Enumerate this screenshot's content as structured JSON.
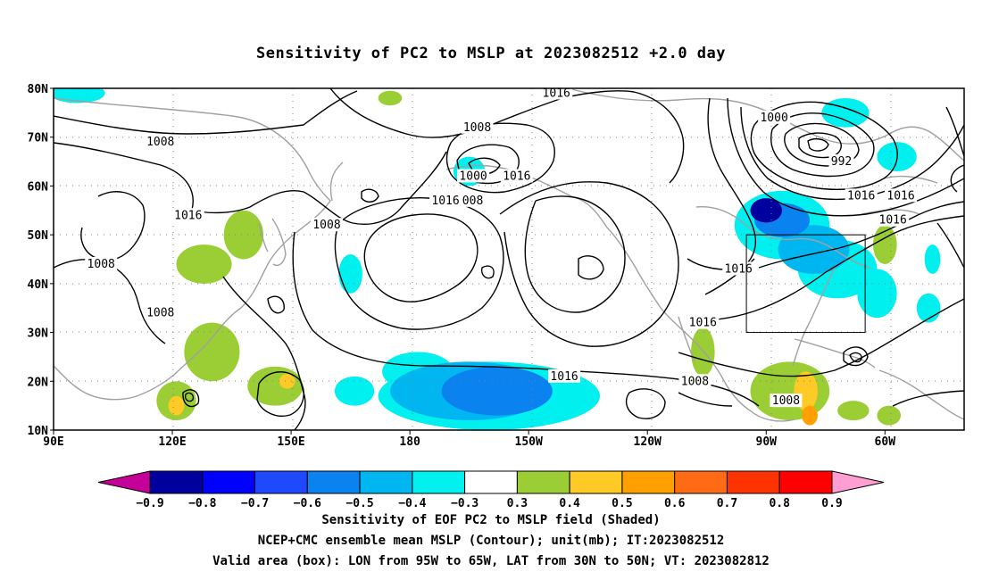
{
  "title": "Sensitivity of PC2 to MSLP at 2023082512 +2.0 day",
  "map": {
    "lat_labels": [
      "80N",
      "70N",
      "60N",
      "50N",
      "40N",
      "30N",
      "20N",
      "10N"
    ],
    "lon_labels": [
      "90E",
      "120E",
      "150E",
      "180",
      "150W",
      "120W",
      "90W",
      "60W"
    ],
    "valid_box": {
      "lon_range": [
        "95W",
        "65W"
      ],
      "lat_range": [
        "30N",
        "50N"
      ]
    },
    "contour_labels": [
      {
        "text": "1016",
        "lon": -143,
        "lat": 79
      },
      {
        "text": "1008",
        "lon": -163,
        "lat": 72
      },
      {
        "text": "1008",
        "lon": 117,
        "lat": 69
      },
      {
        "text": "1000",
        "lon": -88,
        "lat": 74
      },
      {
        "text": "992",
        "lon": -71,
        "lat": 65
      },
      {
        "text": "1000",
        "lon": -164,
        "lat": 62
      },
      {
        "text": "1016",
        "lon": -153,
        "lat": 62
      },
      {
        "text": "1008",
        "lon": -165,
        "lat": 57
      },
      {
        "text": "1016",
        "lon": -171,
        "lat": 57
      },
      {
        "text": "1008",
        "lon": 159,
        "lat": 52
      },
      {
        "text": "1016",
        "lon": 124,
        "lat": 54
      },
      {
        "text": "1008",
        "lon": 102,
        "lat": 44
      },
      {
        "text": "1016",
        "lon": -66,
        "lat": 58
      },
      {
        "text": "1016",
        "lon": -56,
        "lat": 58
      },
      {
        "text": "1016",
        "lon": -58,
        "lat": 53
      },
      {
        "text": "1016",
        "lon": -97,
        "lat": 43
      },
      {
        "text": "1008",
        "lon": 117,
        "lat": 34
      },
      {
        "text": "1016",
        "lon": -106,
        "lat": 32
      },
      {
        "text": "1016",
        "lon": -141,
        "lat": 21
      },
      {
        "text": "1008",
        "lon": -108,
        "lat": 20
      },
      {
        "text": "1008",
        "lon": -85,
        "lat": 16
      }
    ],
    "sensitivity_blobs": [
      {
        "lon": -90,
        "lat": 55,
        "rx": 4,
        "ry": 2.5,
        "value": -0.8
      },
      {
        "lon": -86,
        "lat": 53,
        "rx": 7,
        "ry": 3.5,
        "value": -0.6
      },
      {
        "lon": -78,
        "lat": 47,
        "rx": 9,
        "ry": 5,
        "value": -0.5
      },
      {
        "lon": -86,
        "lat": 52,
        "rx": 12,
        "ry": 7,
        "value": -0.35
      },
      {
        "lon": -72,
        "lat": 43,
        "rx": 10,
        "ry": 6,
        "value": -0.35
      },
      {
        "lon": -62,
        "lat": 38,
        "rx": 5,
        "ry": 5,
        "value": -0.35
      },
      {
        "lon": -70,
        "lat": 75,
        "rx": 6,
        "ry": 3,
        "value": -0.35
      },
      {
        "lon": -57,
        "lat": 66,
        "rx": 5,
        "ry": 3,
        "value": -0.35
      },
      {
        "lon": 96,
        "lat": 79,
        "rx": 7,
        "ry": 2,
        "value": -0.35
      },
      {
        "lon": -165,
        "lat": 63,
        "rx": 4,
        "ry": 3,
        "value": -0.35
      },
      {
        "lon": -49,
        "lat": 35,
        "rx": 3,
        "ry": 3,
        "value": -0.35
      },
      {
        "lon": -48,
        "lat": 45,
        "rx": 2,
        "ry": 3,
        "value": -0.35
      },
      {
        "lon": -165,
        "lat": 18,
        "rx": 20,
        "ry": 6,
        "value": -0.5
      },
      {
        "lon": -158,
        "lat": 18,
        "rx": 14,
        "ry": 5,
        "value": -0.6
      },
      {
        "lon": -160,
        "lat": 17,
        "rx": 28,
        "ry": 7,
        "value": -0.35
      },
      {
        "lon": -178,
        "lat": 22,
        "rx": 9,
        "ry": 4,
        "value": -0.35
      },
      {
        "lon": 166,
        "lat": 18,
        "rx": 5,
        "ry": 3,
        "value": -0.35
      },
      {
        "lon": 165,
        "lat": 42,
        "rx": 3,
        "ry": 4,
        "value": -0.35
      },
      {
        "lon": 128,
        "lat": 44,
        "rx": 7,
        "ry": 4,
        "value": 0.35
      },
      {
        "lon": 138,
        "lat": 50,
        "rx": 5,
        "ry": 5,
        "value": 0.35
      },
      {
        "lon": 130,
        "lat": 26,
        "rx": 7,
        "ry": 6,
        "value": 0.35
      },
      {
        "lon": 146,
        "lat": 19,
        "rx": 7,
        "ry": 4,
        "value": 0.35
      },
      {
        "lon": 121,
        "lat": 16,
        "rx": 5,
        "ry": 4,
        "value": 0.35
      },
      {
        "lon": 121,
        "lat": 15,
        "rx": 2,
        "ry": 2,
        "value": 0.45
      },
      {
        "lon": 149,
        "lat": 20,
        "rx": 2,
        "ry": 1.5,
        "value": 0.45
      },
      {
        "lon": -84,
        "lat": 18,
        "rx": 10,
        "ry": 6,
        "value": 0.35
      },
      {
        "lon": -80,
        "lat": 18,
        "rx": 3,
        "ry": 4,
        "value": 0.45
      },
      {
        "lon": -79,
        "lat": 13,
        "rx": 2,
        "ry": 2,
        "value": 0.55
      },
      {
        "lon": -106,
        "lat": 26,
        "rx": 3,
        "ry": 5,
        "value": 0.35
      },
      {
        "lon": -68,
        "lat": 14,
        "rx": 4,
        "ry": 2,
        "value": 0.35
      },
      {
        "lon": -59,
        "lat": 13,
        "rx": 3,
        "ry": 2,
        "value": 0.35
      },
      {
        "lon": -60,
        "lat": 48,
        "rx": 3,
        "ry": 4,
        "value": 0.35
      },
      {
        "lon": 175,
        "lat": 78,
        "rx": 3,
        "ry": 1.5,
        "value": 0.35
      }
    ]
  },
  "colorbar": {
    "bins": [
      {
        "color": "#c40098"
      },
      {
        "color": "#00009e"
      },
      {
        "color": "#0000ff"
      },
      {
        "color": "#1f49ff"
      },
      {
        "color": "#0a82f0"
      },
      {
        "color": "#00b6f0"
      },
      {
        "color": "#00f0f0"
      },
      {
        "color": "#ffffff"
      },
      {
        "color": "#9ace34"
      },
      {
        "color": "#ffc926"
      },
      {
        "color": "#ffa000"
      },
      {
        "color": "#ff6a14"
      },
      {
        "color": "#ff3300"
      },
      {
        "color": "#ff0000"
      },
      {
        "color": "#ff9ed2"
      }
    ],
    "tick_labels": [
      "-0.9",
      "-0.8",
      "-0.7",
      "-0.6",
      "-0.5",
      "-0.4",
      "-0.3",
      "0.3",
      "0.4",
      "0.5",
      "0.6",
      "0.7",
      "0.8",
      "0.9"
    ]
  },
  "captions": {
    "line1": "Sensitivity of EOF PC2 to MSLP field (Shaded)",
    "line2": "NCEP+CMC ensemble mean MSLP (Contour); unit(mb); IT:2023082512",
    "line3": "Valid area (box): LON from 95W to 65W, LAT from 30N to 50N; VT: 2023082812"
  }
}
